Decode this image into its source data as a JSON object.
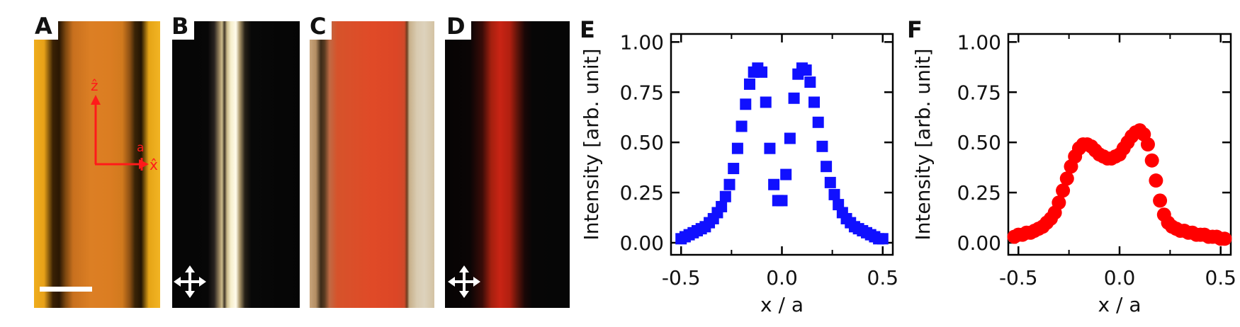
{
  "figure": {
    "panel_labels": [
      "A",
      "B",
      "C",
      "D",
      "E",
      "F"
    ],
    "axis_label_a": "a",
    "axis_label_z": "ẑ",
    "axis_label_x": "x̂",
    "colors": {
      "red_annotation": "#ff1a1a",
      "blue_series": "#1010ff",
      "red_series": "#ff0000"
    }
  },
  "chart_data": [
    {
      "type": "scatter",
      "panel": "E",
      "xlabel": "x / a",
      "ylabel": "Intensity [arb. unit]",
      "xlim": [
        -0.55,
        0.55
      ],
      "ylim": [
        -0.06,
        1.04
      ],
      "xticks": [
        "-0.5",
        "0.0",
        "0.5"
      ],
      "xtick_values": [
        -0.5,
        0.0,
        0.5
      ],
      "yticks": [
        "0.00",
        "0.25",
        "0.50",
        "0.75",
        "1.00"
      ],
      "ytick_values": [
        0.0,
        0.25,
        0.5,
        0.75,
        1.0
      ],
      "marker": "square",
      "color": "#1010ff",
      "x": [
        -0.5,
        -0.48,
        -0.46,
        -0.44,
        -0.42,
        -0.4,
        -0.38,
        -0.36,
        -0.34,
        -0.32,
        -0.3,
        -0.28,
        -0.26,
        -0.24,
        -0.22,
        -0.2,
        -0.18,
        -0.16,
        -0.14,
        -0.12,
        -0.1,
        -0.08,
        -0.06,
        -0.04,
        -0.02,
        0.0,
        0.02,
        0.04,
        0.06,
        0.08,
        0.1,
        0.12,
        0.14,
        0.16,
        0.18,
        0.2,
        0.22,
        0.24,
        0.26,
        0.28,
        0.3,
        0.32,
        0.34,
        0.36,
        0.38,
        0.4,
        0.42,
        0.44,
        0.46,
        0.48,
        0.5
      ],
      "y": [
        0.02,
        0.03,
        0.04,
        0.05,
        0.06,
        0.07,
        0.08,
        0.1,
        0.12,
        0.15,
        0.18,
        0.23,
        0.29,
        0.37,
        0.47,
        0.58,
        0.69,
        0.79,
        0.85,
        0.87,
        0.85,
        0.7,
        0.47,
        0.29,
        0.21,
        0.21,
        0.34,
        0.52,
        0.72,
        0.84,
        0.87,
        0.86,
        0.8,
        0.7,
        0.6,
        0.48,
        0.38,
        0.3,
        0.24,
        0.19,
        0.15,
        0.12,
        0.1,
        0.08,
        0.07,
        0.06,
        0.05,
        0.04,
        0.03,
        0.02,
        0.02
      ]
    },
    {
      "type": "scatter",
      "panel": "F",
      "xlabel": "x / a",
      "ylabel": "Intensity [arb. unit]",
      "xlim": [
        -0.55,
        0.55
      ],
      "ylim": [
        -0.06,
        1.04
      ],
      "xticks": [
        "-0.5",
        "0.0",
        "0.5"
      ],
      "xtick_values": [
        -0.5,
        0.0,
        0.5
      ],
      "yticks": [
        "0.00",
        "0.25",
        "0.50",
        "0.75",
        "1.00"
      ],
      "ytick_values": [
        0.0,
        0.25,
        0.5,
        0.75,
        1.0
      ],
      "marker": "circle",
      "color": "#ff0000",
      "x": [
        -0.52,
        -0.5,
        -0.48,
        -0.46,
        -0.44,
        -0.42,
        -0.4,
        -0.38,
        -0.36,
        -0.34,
        -0.32,
        -0.3,
        -0.28,
        -0.26,
        -0.24,
        -0.22,
        -0.2,
        -0.18,
        -0.16,
        -0.14,
        -0.12,
        -0.1,
        -0.08,
        -0.06,
        -0.04,
        -0.02,
        0.0,
        0.02,
        0.04,
        0.06,
        0.08,
        0.1,
        0.12,
        0.14,
        0.16,
        0.18,
        0.2,
        0.22,
        0.24,
        0.26,
        0.28,
        0.3,
        0.32,
        0.34,
        0.36,
        0.38,
        0.4,
        0.42,
        0.44,
        0.46,
        0.48,
        0.5,
        0.52
      ],
      "y": [
        0.03,
        0.04,
        0.04,
        0.05,
        0.05,
        0.06,
        0.07,
        0.08,
        0.1,
        0.12,
        0.15,
        0.2,
        0.26,
        0.32,
        0.38,
        0.43,
        0.47,
        0.49,
        0.49,
        0.48,
        0.46,
        0.44,
        0.43,
        0.42,
        0.42,
        0.43,
        0.44,
        0.47,
        0.5,
        0.53,
        0.55,
        0.56,
        0.54,
        0.49,
        0.41,
        0.31,
        0.21,
        0.14,
        0.1,
        0.08,
        0.07,
        0.06,
        0.06,
        0.05,
        0.05,
        0.04,
        0.04,
        0.04,
        0.03,
        0.03,
        0.03,
        0.02,
        0.02
      ]
    }
  ]
}
